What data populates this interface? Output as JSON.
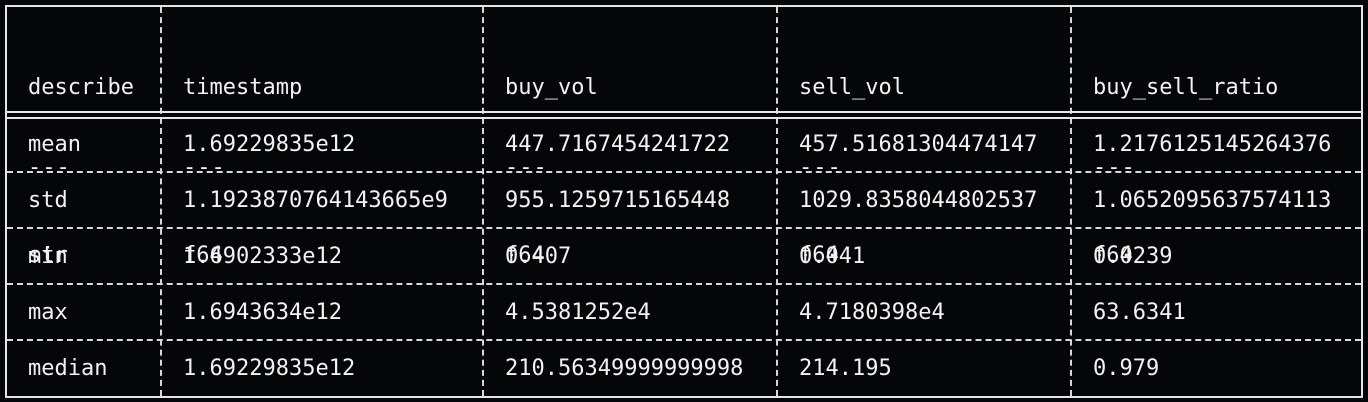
{
  "table": {
    "columns": [
      {
        "name": "describe",
        "rule": "---",
        "dtype": "str"
      },
      {
        "name": "timestamp",
        "rule": "---",
        "dtype": "f64"
      },
      {
        "name": "buy_vol",
        "rule": "---",
        "dtype": "f64"
      },
      {
        "name": "sell_vol",
        "rule": "---",
        "dtype": "f64"
      },
      {
        "name": "buy_sell_ratio",
        "rule": "---",
        "dtype": "f64"
      }
    ],
    "rows": [
      [
        "mean",
        "1.69229835e12",
        "447.7167454241722",
        "457.51681304474147",
        "1.2176125145264376"
      ],
      [
        "std",
        "1.1923870764143665e9",
        "955.1259715165448",
        "1029.8358044802537",
        "1.0652095637574113"
      ],
      [
        "min",
        "1.6902333e12",
        "0.407",
        "0.041",
        "0.0239"
      ],
      [
        "max",
        "1.6943634e12",
        "4.5381252e4",
        "4.7180398e4",
        "63.6341"
      ],
      [
        "median",
        "1.69229835e12",
        "210.56349999999998",
        "214.195",
        "0.979"
      ]
    ]
  }
}
